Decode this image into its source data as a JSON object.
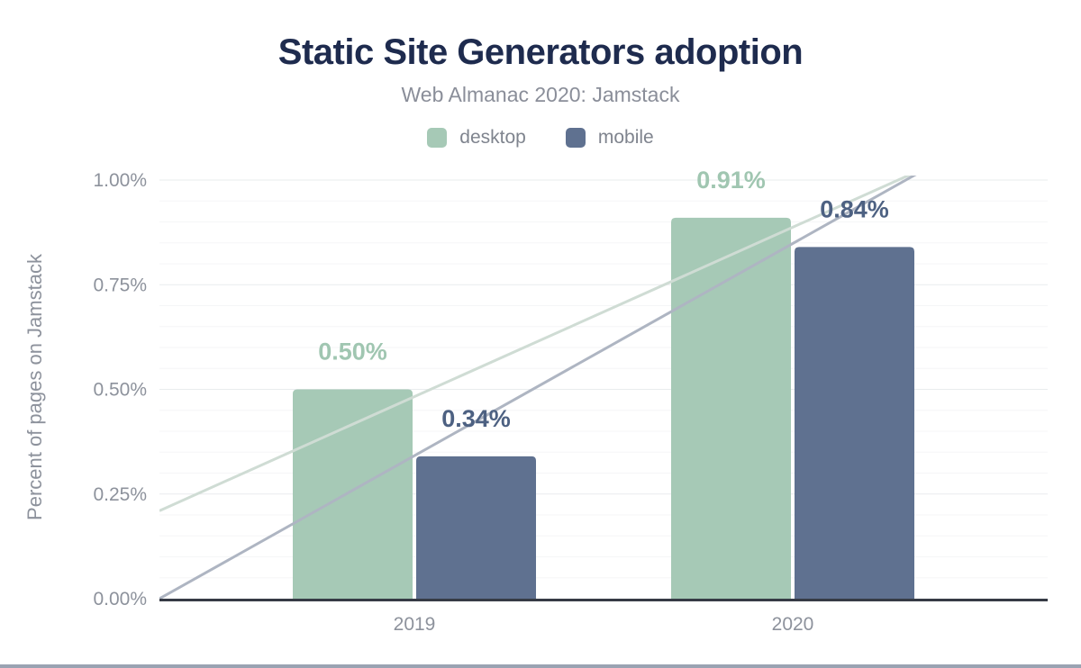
{
  "theme": {
    "background": "#ffffff",
    "title_color": "#1e2b4e",
    "subtitle_color": "#8a8e99",
    "axis_text_color": "#8d929c",
    "legend_text_color": "#7f848e",
    "major_gridline_color": "#e9ecee",
    "minor_gridline_color": "#f5f6f7",
    "baseline_color": "#363b45",
    "footer_bar_color": "#9aa3b2"
  },
  "chart_data": {
    "type": "bar",
    "title": "Static Site Generators adoption",
    "subtitle": "Web Almanac 2020: Jamstack",
    "categories": [
      "2019",
      "2020"
    ],
    "series": [
      {
        "name": "desktop",
        "values": [
          0.5,
          0.91
        ],
        "value_labels": [
          "0.50%",
          "0.91%"
        ],
        "color": "#a6c9b6",
        "label_color": "#a0c6b1"
      },
      {
        "name": "mobile",
        "values": [
          0.34,
          0.84
        ],
        "value_labels": [
          "0.34%",
          "0.84%"
        ],
        "color": "#5f7190",
        "label_color": "#4d6182"
      }
    ],
    "trend_lines": [
      {
        "series": "desktop",
        "from_percent": 0.21,
        "to_percent": 1.16,
        "color": "#cfdcd4"
      },
      {
        "series": "mobile",
        "from_percent": 0.0,
        "to_percent": 1.19,
        "color": "#aeb5c2"
      }
    ],
    "ylabel": "Percent of pages on Jamstack",
    "xlabel": "",
    "yticks": [
      {
        "label": "0.00%",
        "value": 0
      },
      {
        "label": "0.25%",
        "value": 0.25
      },
      {
        "label": "0.50%",
        "value": 0.5
      },
      {
        "label": "0.75%",
        "value": 0.75
      },
      {
        "label": "1.00%",
        "value": 1.0
      }
    ],
    "ylim": [
      0,
      1.0
    ],
    "grid": {
      "orientation": "horizontal",
      "major_step": 0.25,
      "minor_step": 0.05
    },
    "legend": {
      "position": "top",
      "items": [
        "desktop",
        "mobile"
      ]
    }
  }
}
